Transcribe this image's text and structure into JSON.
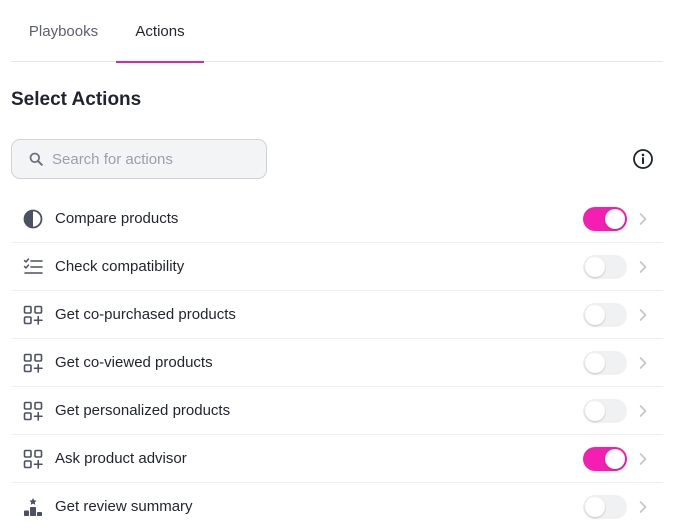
{
  "tabs": [
    {
      "label": "Playbooks"
    },
    {
      "label": "Actions"
    }
  ],
  "section": {
    "title": "Select Actions"
  },
  "search": {
    "placeholder": "Search for actions",
    "value": ""
  },
  "colors": {
    "accent": "#f51eb2",
    "tab_underline": "#d426b7"
  },
  "actions": [
    {
      "label": "Compare products",
      "icon": "half-circle-icon",
      "enabled": true
    },
    {
      "label": "Check compatibility",
      "icon": "checklist-icon",
      "enabled": false
    },
    {
      "label": "Get co-purchased products",
      "icon": "grid-plus-icon",
      "enabled": false
    },
    {
      "label": "Get co-viewed products",
      "icon": "grid-plus-icon",
      "enabled": false
    },
    {
      "label": "Get personalized products",
      "icon": "grid-plus-icon",
      "enabled": false
    },
    {
      "label": "Ask product advisor",
      "icon": "grid-plus-icon",
      "enabled": true
    },
    {
      "label": "Get review summary",
      "icon": "podium-star-icon",
      "enabled": false
    }
  ]
}
